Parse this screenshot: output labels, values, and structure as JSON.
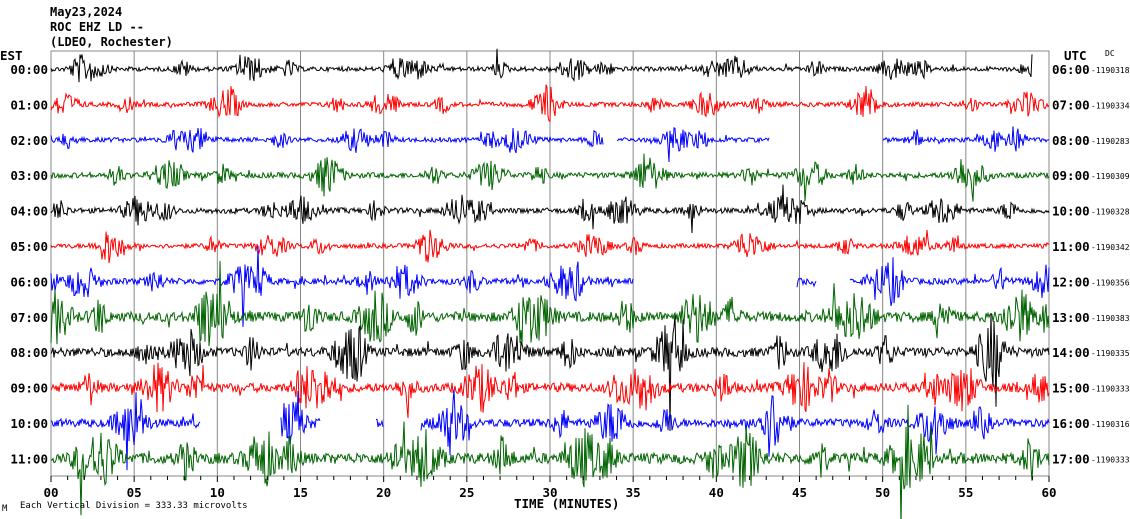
{
  "header": {
    "date": "May23,2024",
    "station": "ROC EHZ LD --",
    "network": "(LDEO, Rochester)"
  },
  "left_axis_title": "EST",
  "right_axis_title": "UTC",
  "dc_title": "DC",
  "footer": {
    "scale_note": "Each Vertical Division = 333.33 microvolts",
    "corner_mark": "M"
  },
  "chart_data": {
    "type": "line",
    "title": "",
    "xlabel": "TIME (MINUTES)",
    "xlim": [
      0,
      60
    ],
    "x_ticks": [
      "00",
      "05",
      "10",
      "15",
      "20",
      "25",
      "30",
      "35",
      "40",
      "45",
      "50",
      "55",
      "60"
    ],
    "grid": true,
    "rows": [
      {
        "est": "00:00",
        "utc": "06:00",
        "dc": "-1190318",
        "color": "#000000",
        "gaps": [
          [
            59,
            60
          ]
        ]
      },
      {
        "est": "01:00",
        "utc": "07:00",
        "dc": "-1190334",
        "color": "#ff0000",
        "gaps": []
      },
      {
        "est": "02:00",
        "utc": "08:00",
        "dc": "-1190283",
        "color": "#0000ff",
        "gaps": [
          [
            33.2,
            34
          ],
          [
            43.2,
            50
          ]
        ]
      },
      {
        "est": "03:00",
        "utc": "09:00",
        "dc": "-1190309",
        "color": "#006400",
        "gaps": []
      },
      {
        "est": "04:00",
        "utc": "10:00",
        "dc": "-1190328",
        "color": "#000000",
        "gaps": []
      },
      {
        "est": "05:00",
        "utc": "11:00",
        "dc": "-1190342",
        "color": "#ff0000",
        "gaps": []
      },
      {
        "est": "06:00",
        "utc": "12:00",
        "dc": "-1190356",
        "color": "#0000ff",
        "gaps": [
          [
            35,
            44.8
          ],
          [
            46,
            48
          ]
        ]
      },
      {
        "est": "07:00",
        "utc": "13:00",
        "dc": "-1190383",
        "color": "#006400",
        "gaps": []
      },
      {
        "est": "08:00",
        "utc": "14:00",
        "dc": "-1190335",
        "color": "#000000",
        "gaps": []
      },
      {
        "est": "09:00",
        "utc": "15:00",
        "dc": "-1190333",
        "color": "#ff0000",
        "gaps": []
      },
      {
        "est": "10:00",
        "utc": "16:00",
        "dc": "-1190316",
        "color": "#0000ff",
        "gaps": [
          [
            9,
            13.8
          ],
          [
            16.2,
            19.5
          ],
          [
            20,
            22.2
          ]
        ]
      },
      {
        "est": "11:00",
        "utc": "17:00",
        "dc": "-1190333",
        "color": "#006400",
        "gaps": []
      }
    ]
  }
}
